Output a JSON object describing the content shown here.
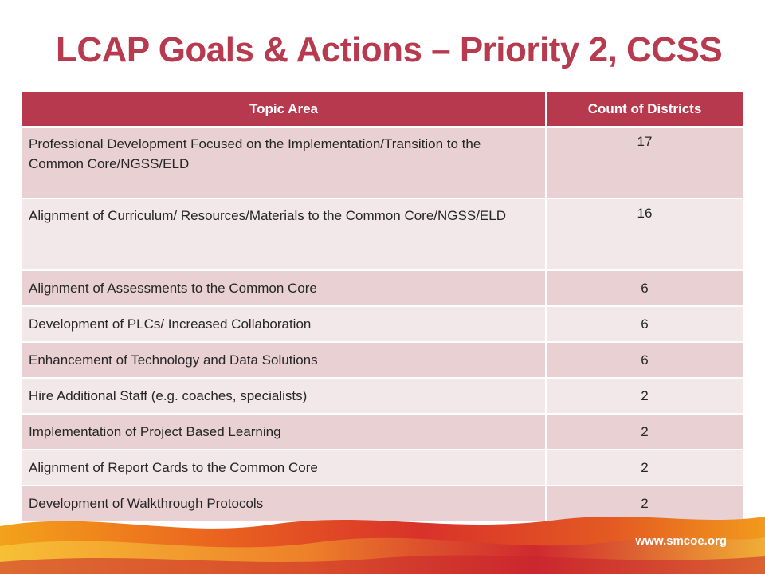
{
  "slide": {
    "title": "LCAP Goals & Actions – Priority 2, CCSS",
    "footer_url": "www.smcoe.org"
  },
  "table": {
    "headers": [
      "Topic Area",
      "Count of Districts"
    ],
    "rows": [
      {
        "topic": "Professional Development Focused on the Implementation/Transition to the Common Core/NGSS/ELD",
        "count": "17"
      },
      {
        "topic": "Alignment of Curriculum/ Resources/Materials to the Common Core/NGSS/ELD",
        "count": "16"
      },
      {
        "topic": "Alignment of Assessments to the Common Core",
        "count": "6"
      },
      {
        "topic": "Development of PLCs/ Increased Collaboration",
        "count": "6"
      },
      {
        "topic": "Enhancement of Technology and Data Solutions",
        "count": "6"
      },
      {
        "topic": "Hire Additional Staff (e.g. coaches, specialists)",
        "count": "2"
      },
      {
        "topic": "Implementation of Project Based Learning",
        "count": "2"
      },
      {
        "topic": "Alignment of Report Cards to the Common Core",
        "count": "2"
      },
      {
        "topic": "Development of Walkthrough Protocols",
        "count": "2"
      }
    ]
  },
  "colors": {
    "accent": "#b73a4f",
    "row_dark": "#e9d1d3",
    "row_light": "#f3e8e9"
  }
}
